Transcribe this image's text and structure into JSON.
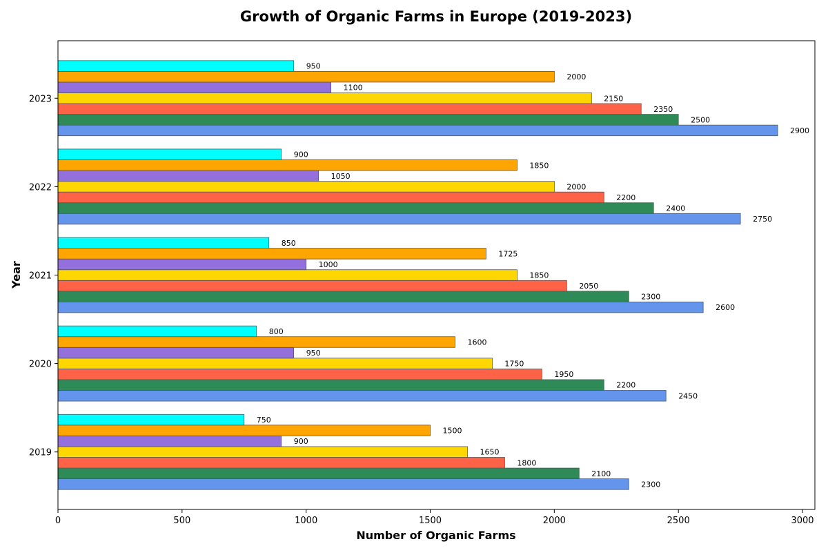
{
  "chart_data": {
    "type": "bar",
    "orientation": "horizontal",
    "title": "Growth of Organic Farms in Europe (2019-2023)",
    "xlabel": "Number of Organic Farms",
    "ylabel": "Year",
    "categories": [
      "2019",
      "2020",
      "2021",
      "2022",
      "2023"
    ],
    "xlim": [
      0,
      3050
    ],
    "xticks": [
      0,
      500,
      1000,
      1500,
      2000,
      2500,
      3000
    ],
    "grid": false,
    "legend": "none",
    "series": [
      {
        "color": "#6495ED",
        "values": [
          2300,
          2450,
          2600,
          2750,
          2900
        ]
      },
      {
        "color": "#2E8B57",
        "values": [
          2100,
          2200,
          2300,
          2400,
          2500
        ]
      },
      {
        "color": "#FF6347",
        "values": [
          1800,
          1950,
          2050,
          2200,
          2350
        ]
      },
      {
        "color": "#FFD700",
        "values": [
          1650,
          1750,
          1850,
          2000,
          2150
        ]
      },
      {
        "color": "#9370DB",
        "values": [
          900,
          950,
          1000,
          1050,
          1100
        ]
      },
      {
        "color": "#FFA500",
        "values": [
          1500,
          1600,
          1725,
          1850,
          2000
        ]
      },
      {
        "color": "#00FFFF",
        "values": [
          750,
          800,
          850,
          900,
          950
        ]
      }
    ]
  }
}
